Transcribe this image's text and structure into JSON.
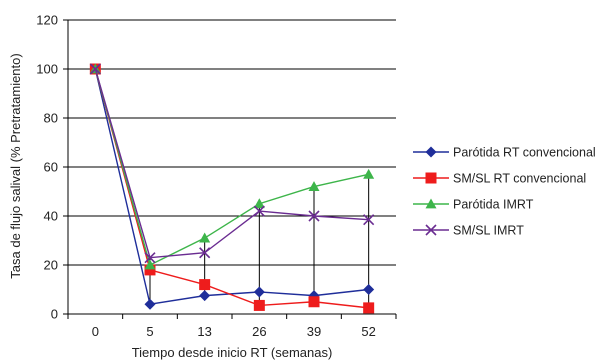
{
  "chart_data": {
    "type": "line",
    "categories": [
      "0",
      "5",
      "13",
      "26",
      "39",
      "52"
    ],
    "xlabel": "Tiempo desde inicio RT (semanas)",
    "ylabel": "Tasa de flujo salival (% Pretratamiento)",
    "ylim": [
      0,
      120
    ],
    "yticks": [
      0,
      20,
      40,
      60,
      80,
      100,
      120
    ],
    "grid": "horizontal",
    "legend_position": "right",
    "series": [
      {
        "name": "Parótida RT convencional",
        "color": "#1F2E9A",
        "marker": "diamond",
        "values": [
          100,
          4,
          7.5,
          9,
          7.5,
          10
        ]
      },
      {
        "name": "SM/SL RT convencional",
        "color": "#EE1C1C",
        "marker": "square",
        "values": [
          100,
          18,
          12,
          3.5,
          5,
          2.5
        ]
      },
      {
        "name": "Parótida IMRT",
        "color": "#3DB54A",
        "marker": "triangle",
        "values": [
          100,
          20,
          31,
          45,
          52,
          57
        ]
      },
      {
        "name": "SM/SL IMRT",
        "color": "#6A2C91",
        "marker": "x",
        "values": [
          100,
          23,
          25,
          42,
          40,
          38.5
        ]
      }
    ],
    "drop_lines": true
  }
}
